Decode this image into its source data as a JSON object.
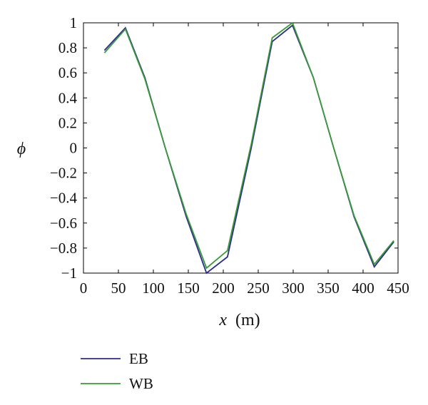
{
  "chart_data": {
    "type": "line",
    "title": "",
    "xlabel_var": "x",
    "xlabel_unit": "(m)",
    "ylabel": "ϕ",
    "xlim": [
      0,
      450
    ],
    "ylim": [
      -1,
      1
    ],
    "x_ticks": [
      "0",
      "50",
      "100",
      "150",
      "200",
      "250",
      "300",
      "350",
      "400",
      "450"
    ],
    "y_ticks": [
      "1",
      "0.8",
      "0.6",
      "0.4",
      "0.2",
      "0",
      "−0.2",
      "−0.4",
      "−0.6",
      "−0.8",
      "−1"
    ],
    "grid": false,
    "legend_position": "bottom-left, below plot",
    "series": [
      {
        "name": "EB",
        "color": "#2b2b8c",
        "x": [
          30,
          60,
          88,
          117,
          147,
          176,
          206,
          240,
          270,
          299,
          329,
          358,
          387,
          416,
          444
        ],
        "y": [
          0.78,
          0.96,
          0.56,
          0.0,
          -0.55,
          -1.0,
          -0.87,
          0.0,
          0.85,
          0.98,
          0.56,
          0.0,
          -0.55,
          -0.95,
          -0.75
        ]
      },
      {
        "name": "WB",
        "color": "#3a9a3a",
        "x": [
          30,
          60,
          88,
          117,
          147,
          176,
          206,
          240,
          270,
          299,
          329,
          358,
          387,
          416,
          444
        ],
        "y": [
          0.76,
          0.95,
          0.55,
          0.0,
          -0.53,
          -0.96,
          -0.82,
          0.03,
          0.88,
          1.0,
          0.56,
          0.0,
          -0.54,
          -0.93,
          -0.74
        ]
      }
    ]
  }
}
